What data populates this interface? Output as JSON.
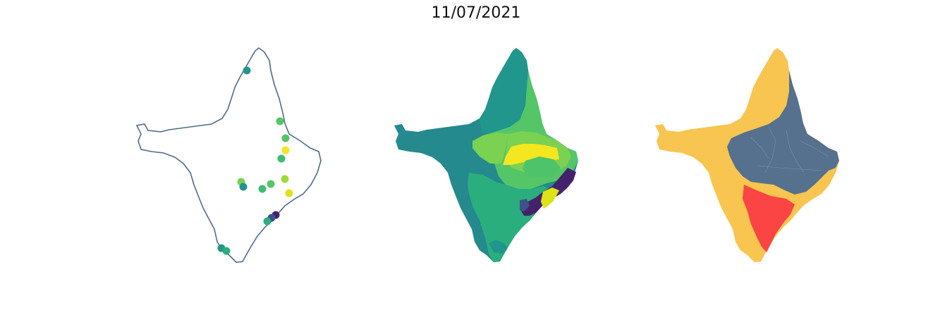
{
  "title": "11/07/2021",
  "palette": {
    "outline": "#4f6b8a",
    "viridis_dark": "#44226b",
    "viridis_teal": "#21968c",
    "viridis_blue_teal": "#248a8d",
    "viridis_green": "#2aae7d",
    "viridis_green2": "#55c667",
    "viridis_lime": "#7bd151",
    "viridis_yellow": "#f4e61f",
    "viridis_yellowgreen": "#b6de2b",
    "category_yellow": "#f8c550",
    "category_slate": "#56718e",
    "category_red": "#fb4444"
  },
  "panels": [
    {
      "name": "station-points-map",
      "kind": "points"
    },
    {
      "name": "filled-regions-map",
      "kind": "choropleth"
    },
    {
      "name": "category-regions-map",
      "kind": "categorical"
    }
  ]
}
